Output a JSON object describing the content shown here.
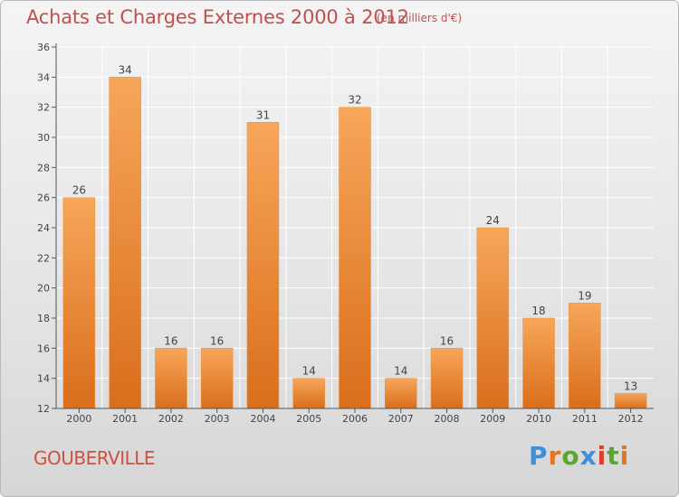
{
  "header": {
    "title": "Achats et Charges Externes 2000 à 2012",
    "subtitle": "(en milliers d'€)"
  },
  "footer": {
    "commune": "GOUBERVILLE",
    "logo_text": "Proxiti",
    "logo_colors": [
      "#3c8fd9",
      "#e8731a",
      "#58a82d",
      "#3c8fd9",
      "#e23b2e",
      "#58a82d",
      "#e8731a"
    ]
  },
  "colors": {
    "bar_light": "#f7a65a",
    "bar_dark": "#d96e1c",
    "axis": "#555555",
    "grid": "#ffffff",
    "accent": "#c0504d"
  },
  "chart_data": {
    "type": "bar",
    "categories": [
      "2000",
      "2001",
      "2002",
      "2003",
      "2004",
      "2005",
      "2006",
      "2007",
      "2008",
      "2009",
      "2010",
      "2011",
      "2012"
    ],
    "values": [
      26,
      34,
      16,
      16,
      31,
      14,
      32,
      14,
      16,
      24,
      18,
      19,
      13
    ],
    "ylim": [
      12,
      36
    ],
    "yticks": [
      12,
      14,
      16,
      18,
      20,
      22,
      24,
      26,
      28,
      30,
      32,
      34,
      36
    ],
    "grid": true,
    "legend": "none"
  }
}
